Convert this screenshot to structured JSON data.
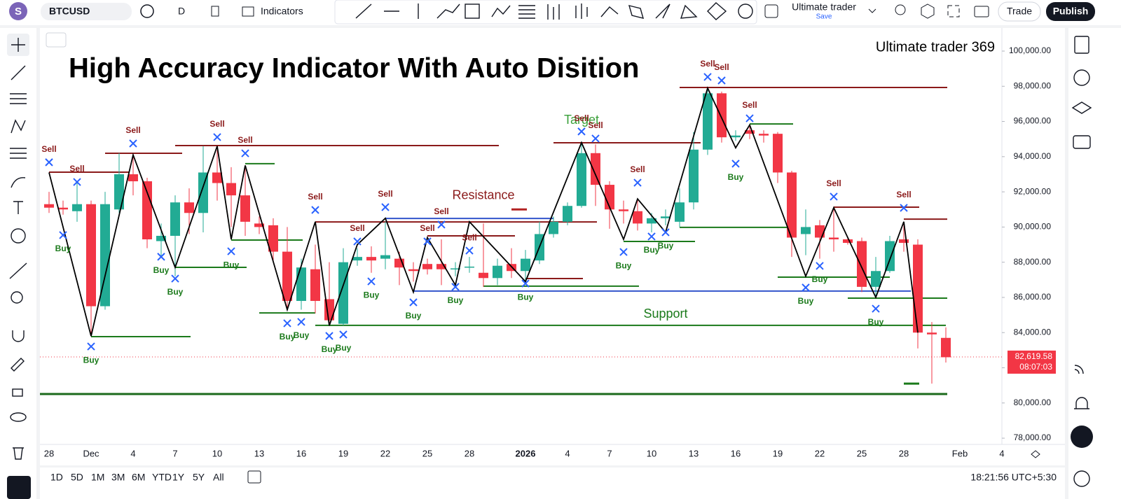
{
  "toolbar": {
    "avatar": "S",
    "symbol": "BTCUSD",
    "interval": "D",
    "indicators": "Indicators",
    "layout_name": "Ultimate trader",
    "layout_status": "Save",
    "trade": "Trade",
    "publish": "Publish"
  },
  "chart_data": {
    "type": "candlestick",
    "title": "High Accuracy Indicator With Auto Disition",
    "watermark": "Ultimate trader 369",
    "categories": [
      "28",
      null,
      null,
      "Dec",
      null,
      null,
      "4",
      null,
      null,
      "7",
      null,
      null,
      "10",
      null,
      null,
      "13",
      null,
      null,
      "16",
      null,
      null,
      "19",
      null,
      null,
      "22",
      null,
      null,
      "25",
      null,
      null,
      "28",
      null,
      null,
      null,
      "2026",
      null,
      null,
      "4",
      null,
      null,
      "7",
      null,
      null,
      "10",
      null,
      null,
      "13",
      null,
      null,
      "16",
      null,
      null,
      "19",
      null,
      null,
      "22",
      null,
      null,
      "25",
      null,
      null,
      "28",
      null,
      null,
      null,
      "Feb",
      null,
      null,
      "4"
    ],
    "open": [
      91300,
      91100,
      90900,
      91300,
      85500,
      91000,
      93000,
      92600,
      89200,
      89500,
      91400,
      90800,
      93100,
      92500,
      91800,
      90200,
      90100,
      88600,
      85800,
      87600,
      85900,
      84500,
      88100,
      88300,
      88200,
      88200,
      87600,
      87900,
      87900,
      87600,
      87700,
      87400,
      87100,
      87900,
      87500,
      88100,
      89600,
      90300,
      91200,
      94200,
      92400,
      91000,
      90900,
      90200,
      90500,
      90300,
      91400,
      94400,
      97600,
      95100,
      95500,
      95300,
      95300,
      93100,
      89600,
      90100,
      89400,
      89300,
      89200,
      86600,
      87500,
      89300,
      89000,
      84000,
      83700,
      null,
      null,
      null,
      null
    ],
    "high": [
      92000,
      91500,
      92500,
      91500,
      92000,
      94200,
      94000,
      92800,
      90200,
      91800,
      92200,
      94600,
      94400,
      93400,
      93300,
      90600,
      90500,
      90000,
      88200,
      89000,
      88000,
      88800,
      88800,
      88900,
      90300,
      88600,
      88000,
      88200,
      89300,
      88000,
      88300,
      90200,
      88200,
      88800,
      88700,
      90300,
      90600,
      91400,
      94700,
      94700,
      92600,
      91500,
      91600,
      90800,
      91000,
      92200,
      95400,
      97900,
      97700,
      95500,
      95700,
      95500,
      95400,
      93200,
      91000,
      90400,
      91000,
      89400,
      89400,
      88300,
      89500,
      90300,
      89300,
      84600,
      84300,
      null,
      null,
      null,
      null
    ],
    "low": [
      90800,
      90700,
      90300,
      83800,
      85300,
      90800,
      91800,
      88800,
      88300,
      87200,
      89600,
      89700,
      91500,
      90000,
      89500,
      89600,
      88000,
      85300,
      85300,
      85100,
      84400,
      84400,
      87800,
      87400,
      87600,
      86700,
      86900,
      87300,
      86700,
      87200,
      87400,
      86600,
      86700,
      87100,
      86900,
      87900,
      89400,
      90100,
      91100,
      91200,
      89900,
      90200,
      89800,
      89700,
      90100,
      90000,
      91000,
      94100,
      94800,
      94900,
      95000,
      94800,
      92500,
      88300,
      88400,
      88200,
      88600,
      89000,
      86300,
      86100,
      87400,
      88600,
      83100,
      81100,
      82300,
      null,
      null,
      null,
      null
    ],
    "close": [
      91100,
      91000,
      91300,
      85500,
      91300,
      93000,
      92600,
      89300,
      89500,
      91400,
      90800,
      93100,
      92500,
      91800,
      90300,
      90000,
      88600,
      85800,
      87700,
      85800,
      84700,
      88000,
      88300,
      88100,
      88400,
      87700,
      87500,
      87600,
      87600,
      87650,
      87750,
      87100,
      87800,
      87500,
      88200,
      89600,
      90300,
      91200,
      94200,
      92400,
      91000,
      90900,
      90200,
      90500,
      90600,
      91400,
      94400,
      97600,
      95100,
      95200,
      95300,
      95200,
      93100,
      89400,
      90000,
      89400,
      89300,
      89100,
      86600,
      87500,
      89200,
      89100,
      84000,
      83900,
      82600,
      null,
      null,
      null,
      null
    ],
    "up_color": "#22ab94",
    "down_color": "#f23645",
    "ylim": [
      77446,
      101074
    ],
    "yticks": [
      {
        "value": 78000,
        "label": "78,000.00"
      },
      {
        "value": 80000,
        "label": "80,000.00"
      },
      {
        "value": 82000,
        "label": "82,000.00"
      },
      {
        "value": 84000,
        "label": "84,000.00"
      },
      {
        "value": 86000,
        "label": "86,000.00"
      },
      {
        "value": 88000,
        "label": "88,000.00"
      },
      {
        "value": 90000,
        "label": "90,000.00"
      },
      {
        "value": 92000,
        "label": "92,000.00"
      },
      {
        "value": 94000,
        "label": "94,000.00"
      },
      {
        "value": 96000,
        "label": "96,000.00"
      },
      {
        "value": 98000,
        "label": "98,000.00"
      },
      {
        "value": 100000,
        "label": "100,000.00"
      }
    ],
    "last_price": {
      "value": 82619.58,
      "label": "82,619.58"
    },
    "countdown": "08:07:03",
    "levels": [
      {
        "price": 97930,
        "color": "#8b1a1a"
      },
      {
        "price": 94790,
        "color": "#8b1a1a"
      },
      {
        "price": 94630,
        "color": "#8b1a1a"
      },
      {
        "price": 94190,
        "color": "#8b1a1a"
      },
      {
        "price": 93120,
        "color": "#8b1a1a"
      },
      {
        "price": 93600,
        "color": "#1b7a1b"
      },
      {
        "price": 90290,
        "color": "#8b1a1a"
      },
      {
        "price": 90490,
        "color": "#3355cc"
      },
      {
        "price": 89500,
        "color": "#8b1a1a"
      },
      {
        "price": 89260,
        "color": "#1b7a1b"
      },
      {
        "price": 87710,
        "color": "#1b7a1b"
      },
      {
        "price": 87070,
        "color": "#8b1a1a"
      },
      {
        "price": 86640,
        "color": "#1b7a1b"
      },
      {
        "price": 86360,
        "color": "#3355cc"
      },
      {
        "price": 85120,
        "color": "#1b7a1b"
      },
      {
        "price": 84410,
        "color": "#1b7a1b"
      },
      {
        "price": 83770,
        "color": "#1b7a1b"
      },
      {
        "price": 80510,
        "color": "#1b6a1b"
      },
      {
        "price": 95860,
        "color": "#1b7a1b"
      },
      {
        "price": 89980,
        "color": "#1b7a1b"
      },
      {
        "price": 89180,
        "color": "#1b7a1b"
      },
      {
        "price": 91130,
        "color": "#8b1a1a"
      },
      {
        "price": 90450,
        "color": "#8b1a1a"
      },
      {
        "price": 85960,
        "color": "#1b7a1b"
      },
      {
        "price": 87150,
        "color": "#1b7a1b"
      },
      {
        "price": 91000,
        "color": "#b22222"
      },
      {
        "price": 81100,
        "color": "#1b7a1b"
      }
    ],
    "zigzag": [
      93100,
      83800,
      94100,
      87700,
      94600,
      89300,
      93500,
      85300,
      90300,
      84400,
      89000,
      90500,
      86300,
      89400,
      86700,
      90300,
      86900,
      94800,
      89300,
      91600,
      89700,
      97900,
      94500,
      95800,
      87200,
      91100,
      86000,
      90300,
      84000
    ],
    "signals": [
      {
        "label": "Sell",
        "price": 93680
      },
      {
        "label": "Sell",
        "price": 92560
      },
      {
        "label": "Buy",
        "price": 89540
      },
      {
        "label": "Buy",
        "price": 83210
      },
      {
        "label": "Sell",
        "price": 94750
      },
      {
        "label": "Buy",
        "price": 88310
      },
      {
        "label": "Buy",
        "price": 87070
      },
      {
        "label": "Sell",
        "price": 95110
      },
      {
        "label": "Sell",
        "price": 94190
      },
      {
        "label": "Buy",
        "price": 88620
      },
      {
        "label": "Sell",
        "price": 90970
      },
      {
        "label": "Buy",
        "price": 84530
      },
      {
        "label": "Buy",
        "price": 84610
      },
      {
        "label": "Buy",
        "price": 83810
      },
      {
        "label": "Buy",
        "price": 83890
      },
      {
        "label": "Sell",
        "price": 89180
      },
      {
        "label": "Buy",
        "price": 86910
      },
      {
        "label": "Sell",
        "price": 91130
      },
      {
        "label": "Buy",
        "price": 85720
      },
      {
        "label": "Sell",
        "price": 90140
      },
      {
        "label": "Sell",
        "price": 89180
      },
      {
        "label": "Buy",
        "price": 86600
      },
      {
        "label": "Sell",
        "price": 88660
      },
      {
        "label": "Buy",
        "price": 86790
      },
      {
        "label": "Sell",
        "price": 95430
      },
      {
        "label": "Sell",
        "price": 95030
      },
      {
        "label": "Buy",
        "price": 88580
      },
      {
        "label": "Sell",
        "price": 92520
      },
      {
        "label": "Buy",
        "price": 89460
      },
      {
        "label": "Buy",
        "price": 89700
      },
      {
        "label": "Sell",
        "price": 98530
      },
      {
        "label": "Sell",
        "price": 98330
      },
      {
        "label": "Sell",
        "price": 96180
      },
      {
        "label": "Buy",
        "price": 93600
      },
      {
        "label": "Buy",
        "price": 86560
      },
      {
        "label": "Buy",
        "price": 87790
      },
      {
        "label": "Sell",
        "price": 91730
      },
      {
        "label": "Buy",
        "price": 85360
      },
      {
        "label": "Sell",
        "price": 91090
      }
    ],
    "annotations": [
      {
        "text": "Resistance",
        "price": 91770,
        "color": "#8b1a1a"
      },
      {
        "text": "Support",
        "price": 85040,
        "color": "#1b7a1b"
      },
      {
        "text": "Target",
        "price": 96060,
        "color": "#3aa03a"
      }
    ]
  },
  "timeframes": [
    "1D",
    "5D",
    "1M",
    "3M",
    "6M",
    "YTD",
    "1Y",
    "5Y",
    "All"
  ],
  "clock": "18:21:56 UTC+5:30"
}
